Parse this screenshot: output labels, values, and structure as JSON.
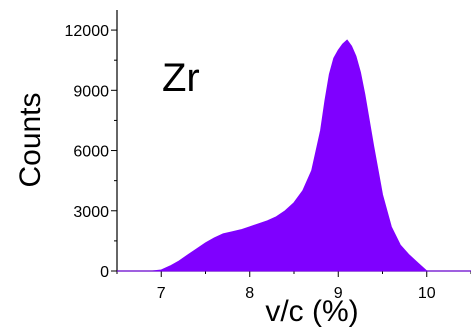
{
  "chart_data": {
    "type": "area",
    "title": "",
    "xlabel": "v/c (%)",
    "ylabel": "Counts",
    "annotation": "Zr",
    "xlim": [
      6.5,
      10.5
    ],
    "ylim": [
      0,
      13000
    ],
    "x_ticks": [
      7,
      8,
      9,
      10
    ],
    "y_ticks": [
      0,
      3000,
      6000,
      9000,
      12000
    ],
    "grid": false,
    "legend": "none",
    "fill_color": "#7f00ff",
    "x": [
      6.5,
      6.9,
      7.0,
      7.1,
      7.2,
      7.3,
      7.4,
      7.5,
      7.6,
      7.7,
      7.8,
      7.9,
      8.0,
      8.1,
      8.2,
      8.3,
      8.4,
      8.5,
      8.6,
      8.7,
      8.8,
      8.85,
      8.9,
      8.95,
      9.0,
      9.05,
      9.1,
      9.15,
      9.2,
      9.25,
      9.3,
      9.4,
      9.5,
      9.6,
      9.7,
      9.8,
      9.9,
      10.0,
      10.5
    ],
    "counts": [
      0,
      0,
      50,
      250,
      500,
      800,
      1100,
      1400,
      1650,
      1850,
      1950,
      2050,
      2200,
      2350,
      2500,
      2700,
      3000,
      3400,
      4000,
      5000,
      7000,
      8500,
      9800,
      10600,
      11000,
      11300,
      11500,
      11200,
      10700,
      9900,
      8800,
      6200,
      3800,
      2200,
      1300,
      800,
      400,
      0,
      0
    ]
  }
}
